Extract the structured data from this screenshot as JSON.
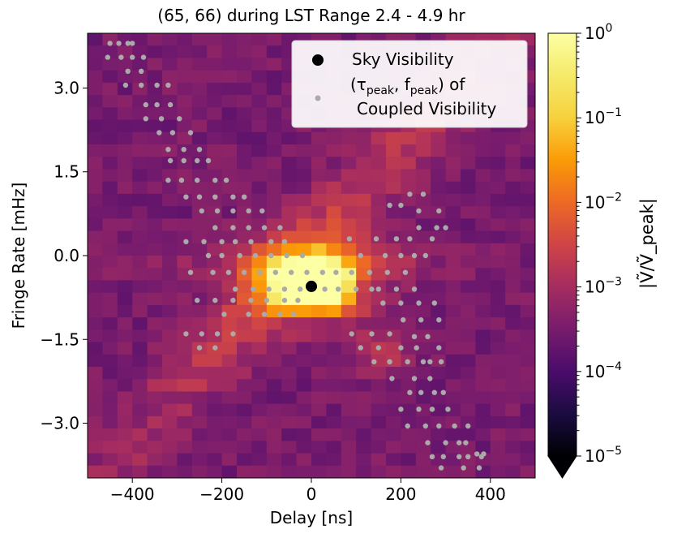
{
  "chart_data": {
    "type": "heatmap",
    "title": "(65, 66) during LST Range 2.4 - 4.9 hr",
    "xlabel": "Delay [ns]",
    "ylabel": "Fringe Rate [mHz]",
    "xlim": [
      -500,
      500
    ],
    "ylim": [
      -3.98,
      3.98
    ],
    "xticks": [
      -400,
      -200,
      0,
      200,
      400
    ],
    "xtick_labels": [
      "−400",
      "−200",
      "0",
      "200",
      "400"
    ],
    "yticks": [
      3.0,
      1.5,
      0.0,
      -1.5,
      -3.0
    ],
    "ytick_labels": [
      "3.0",
      "1.5",
      "0.0",
      "−1.5",
      "−3.0"
    ],
    "grid": false,
    "colormap": "inferno",
    "colorbar": {
      "label": "|Ṽ/Ṽ_peak|",
      "scale": "log",
      "range": [
        1e-05,
        1
      ],
      "tick_exponents": [
        0,
        -1,
        -2,
        -3,
        -4,
        -5
      ],
      "extend": "min"
    },
    "legend": {
      "placement": "upper-right",
      "entries": [
        {
          "label": "Sky Visibility",
          "color": "#000000"
        },
        {
          "label_parts": [
            "(τ",
            "peak",
            ", f",
            "peak",
            ") of"
          ],
          "label_line2": "Coupled Visibility",
          "color": "#aaaaaa"
        }
      ]
    },
    "series": [
      {
        "name": "Sky Visibility",
        "type": "scatter",
        "color": "#000000",
        "points": [
          [
            0,
            -0.55
          ]
        ]
      },
      {
        "name": "(τpeak, fpeak) of Coupled Visibility",
        "type": "scatter",
        "color": "#aaaaaa",
        "points": [
          [
            -450,
            3.8
          ],
          [
            -430,
            3.8
          ],
          [
            -410,
            3.8
          ],
          [
            -400,
            3.8
          ],
          [
            -455,
            3.55
          ],
          [
            -425,
            3.55
          ],
          [
            -400,
            3.55
          ],
          [
            -375,
            3.55
          ],
          [
            -410,
            3.3
          ],
          [
            -380,
            3.3
          ],
          [
            -415,
            3.05
          ],
          [
            -380,
            3.05
          ],
          [
            -345,
            3.05
          ],
          [
            -320,
            3.05
          ],
          [
            -370,
            2.7
          ],
          [
            -345,
            2.7
          ],
          [
            -315,
            2.7
          ],
          [
            -370,
            2.45
          ],
          [
            -335,
            2.45
          ],
          [
            -295,
            2.45
          ],
          [
            -340,
            2.2
          ],
          [
            -310,
            2.2
          ],
          [
            -270,
            2.2
          ],
          [
            -320,
            1.9
          ],
          [
            -285,
            1.9
          ],
          [
            -250,
            1.9
          ],
          [
            -315,
            1.7
          ],
          [
            -285,
            1.7
          ],
          [
            -255,
            1.7
          ],
          [
            -230,
            1.7
          ],
          [
            -320,
            1.35
          ],
          [
            -290,
            1.35
          ],
          [
            -255,
            1.35
          ],
          [
            -215,
            1.35
          ],
          [
            -190,
            1.35
          ],
          [
            -280,
            1.05
          ],
          [
            -250,
            1.05
          ],
          [
            -215,
            1.05
          ],
          [
            -175,
            1.05
          ],
          [
            -150,
            1.05
          ],
          [
            -245,
            0.8
          ],
          [
            -210,
            0.8
          ],
          [
            -175,
            0.8
          ],
          [
            -140,
            0.8
          ],
          [
            -110,
            0.8
          ],
          [
            -215,
            0.5
          ],
          [
            -175,
            0.5
          ],
          [
            -140,
            0.5
          ],
          [
            -105,
            0.5
          ],
          [
            -70,
            0.5
          ],
          [
            -280,
            0.25
          ],
          [
            -240,
            0.25
          ],
          [
            -200,
            0.25
          ],
          [
            -170,
            0.25
          ],
          [
            -135,
            0.25
          ],
          [
            -90,
            0.25
          ],
          [
            -60,
            0.25
          ],
          [
            -230,
            0.0
          ],
          [
            -200,
            0.0
          ],
          [
            -160,
            0.0
          ],
          [
            -125,
            0.0
          ],
          [
            -90,
            0.0
          ],
          [
            -55,
            0.0
          ],
          [
            -20,
            0.0
          ],
          [
            -270,
            -0.3
          ],
          [
            -220,
            -0.3
          ],
          [
            -185,
            -0.3
          ],
          [
            -150,
            -0.3
          ],
          [
            -115,
            -0.3
          ],
          [
            -80,
            -0.3
          ],
          [
            -45,
            -0.3
          ],
          [
            -10,
            -0.3
          ],
          [
            25,
            -0.3
          ],
          [
            55,
            -0.3
          ],
          [
            90,
            -0.3
          ],
          [
            -170,
            -0.6
          ],
          [
            -130,
            -0.6
          ],
          [
            -95,
            -0.6
          ],
          [
            -60,
            -0.6
          ],
          [
            -25,
            -0.6
          ],
          [
            30,
            -0.6
          ],
          [
            60,
            -0.6
          ],
          [
            100,
            -0.6
          ],
          [
            135,
            -0.6
          ],
          [
            -255,
            -0.8
          ],
          [
            -215,
            -0.8
          ],
          [
            -175,
            -0.8
          ],
          [
            -135,
            -0.8
          ],
          [
            -100,
            -0.8
          ],
          [
            -60,
            -0.8
          ],
          [
            -30,
            -0.8
          ],
          [
            -195,
            -1.05
          ],
          [
            -140,
            -1.05
          ],
          [
            -105,
            -1.05
          ],
          [
            -70,
            -1.05
          ],
          [
            -40,
            -1.05
          ],
          [
            -280,
            -1.4
          ],
          [
            -245,
            -1.4
          ],
          [
            -210,
            -1.4
          ],
          [
            -175,
            -1.4
          ],
          [
            -250,
            -1.65
          ],
          [
            -215,
            -1.65
          ],
          [
            90,
            -1.4
          ],
          [
            135,
            -1.4
          ],
          [
            175,
            -1.4
          ],
          [
            110,
            -1.65
          ],
          [
            150,
            -1.65
          ],
          [
            200,
            -1.65
          ],
          [
            235,
            -1.65
          ],
          [
            140,
            -1.9
          ],
          [
            175,
            -1.9
          ],
          [
            215,
            -1.9
          ],
          [
            250,
            -1.9
          ],
          [
            180,
            -2.2
          ],
          [
            230,
            -2.2
          ],
          [
            265,
            -2.2
          ],
          [
            220,
            -2.45
          ],
          [
            245,
            -2.45
          ],
          [
            275,
            -2.45
          ],
          [
            295,
            -2.45
          ],
          [
            200,
            -2.75
          ],
          [
            240,
            -2.75
          ],
          [
            270,
            -2.75
          ],
          [
            305,
            -2.75
          ],
          [
            215,
            -3.05
          ],
          [
            255,
            -3.05
          ],
          [
            285,
            -3.05
          ],
          [
            320,
            -3.05
          ],
          [
            350,
            -3.05
          ],
          [
            260,
            -3.35
          ],
          [
            300,
            -3.35
          ],
          [
            330,
            -3.35
          ],
          [
            345,
            -3.35
          ],
          [
            270,
            -3.6
          ],
          [
            295,
            -3.6
          ],
          [
            330,
            -3.6
          ],
          [
            350,
            -3.6
          ],
          [
            380,
            -3.6
          ],
          [
            290,
            -3.8
          ],
          [
            340,
            -3.8
          ],
          [
            375,
            -3.8
          ],
          [
            370,
            -3.55
          ],
          [
            385,
            -3.55
          ],
          [
            220,
            1.1
          ],
          [
            250,
            1.1
          ],
          [
            175,
            0.9
          ],
          [
            200,
            0.9
          ],
          [
            240,
            0.8
          ],
          [
            285,
            0.8
          ],
          [
            240,
            0.5
          ],
          [
            280,
            0.5
          ],
          [
            300,
            0.5
          ],
          [
            85,
            0.3
          ],
          [
            145,
            0.3
          ],
          [
            190,
            0.3
          ],
          [
            220,
            0.3
          ],
          [
            270,
            0.3
          ],
          [
            110,
            0.0
          ],
          [
            165,
            0.0
          ],
          [
            200,
            0.0
          ],
          [
            230,
            0.0
          ],
          [
            255,
            0.0
          ],
          [
            130,
            -0.3
          ],
          [
            170,
            -0.3
          ],
          [
            210,
            -0.3
          ],
          [
            150,
            -0.6
          ],
          [
            190,
            -0.6
          ],
          [
            230,
            -0.6
          ],
          [
            160,
            -0.85
          ],
          [
            200,
            -0.85
          ],
          [
            240,
            -0.85
          ],
          [
            275,
            -0.85
          ],
          [
            205,
            -1.15
          ],
          [
            245,
            -1.15
          ],
          [
            285,
            -1.15
          ],
          [
            230,
            -1.45
          ],
          [
            260,
            -1.45
          ],
          [
            285,
            -1.65
          ],
          [
            265,
            -1.9
          ],
          [
            290,
            -1.9
          ]
        ]
      }
    ]
  }
}
